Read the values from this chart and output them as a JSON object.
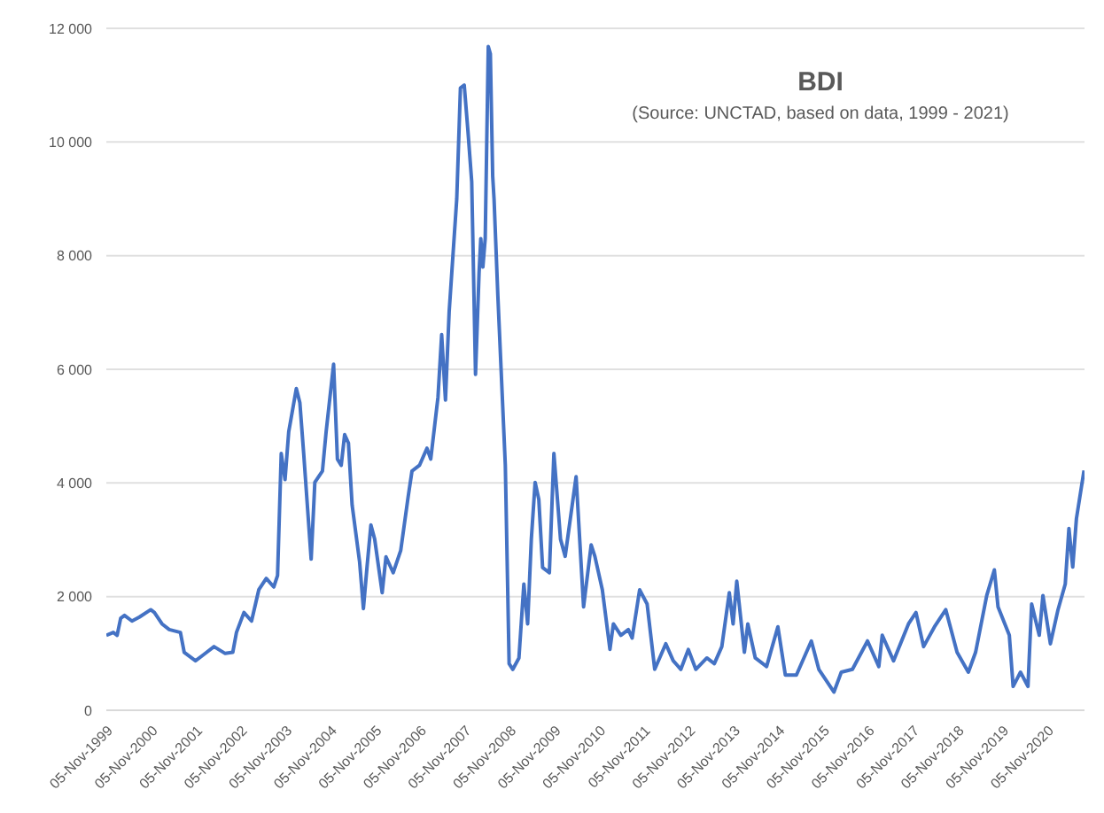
{
  "chart_data": {
    "type": "line",
    "title": "BDI",
    "subtitle": "(Source: UNCTAD, based on data, 1999 - 2021)",
    "grid": "y",
    "line_style": "solid",
    "marker": "none",
    "xlim": [
      "1999-11-05",
      "2021-09-05"
    ],
    "ylim": [
      0,
      12000
    ],
    "yticks": [
      {
        "value": 0,
        "label": "0"
      },
      {
        "value": 2000,
        "label": "2 000"
      },
      {
        "value": 4000,
        "label": "4 000"
      },
      {
        "value": 6000,
        "label": "6 000"
      },
      {
        "value": 8000,
        "label": "8 000"
      },
      {
        "value": 10000,
        "label": "10 000"
      },
      {
        "value": 12000,
        "label": "12 000"
      }
    ],
    "xticks": [
      {
        "value": "1999-11-05",
        "label": "05-Nov-1999"
      },
      {
        "value": "2000-11-05",
        "label": "05-Nov-2000"
      },
      {
        "value": "2001-11-05",
        "label": "05-Nov-2001"
      },
      {
        "value": "2002-11-05",
        "label": "05-Nov-2002"
      },
      {
        "value": "2003-11-05",
        "label": "05-Nov-2003"
      },
      {
        "value": "2004-11-05",
        "label": "05-Nov-2004"
      },
      {
        "value": "2005-11-05",
        "label": "05-Nov-2005"
      },
      {
        "value": "2006-11-05",
        "label": "05-Nov-2006"
      },
      {
        "value": "2007-11-05",
        "label": "05-Nov-2007"
      },
      {
        "value": "2008-11-05",
        "label": "05-Nov-2008"
      },
      {
        "value": "2009-11-05",
        "label": "05-Nov-2009"
      },
      {
        "value": "2010-11-05",
        "label": "05-Nov-2010"
      },
      {
        "value": "2011-11-05",
        "label": "05-Nov-2011"
      },
      {
        "value": "2012-11-05",
        "label": "05-Nov-2012"
      },
      {
        "value": "2013-11-05",
        "label": "05-Nov-2013"
      },
      {
        "value": "2014-11-05",
        "label": "05-Nov-2014"
      },
      {
        "value": "2015-11-05",
        "label": "05-Nov-2015"
      },
      {
        "value": "2016-11-05",
        "label": "05-Nov-2016"
      },
      {
        "value": "2017-11-05",
        "label": "05-Nov-2017"
      },
      {
        "value": "2018-11-05",
        "label": "05-Nov-2018"
      },
      {
        "value": "2019-11-05",
        "label": "05-Nov-2019"
      },
      {
        "value": "2020-11-05",
        "label": "05-Nov-2020"
      }
    ],
    "x": [
      "1999-11-05",
      "2000-01",
      "2000-02",
      "2000-03",
      "2000-04",
      "2000-06",
      "2000-08",
      "2000-11",
      "2000-12",
      "2001-02",
      "2001-04",
      "2001-07",
      "2001-08",
      "2001-11",
      "2002-01",
      "2002-04",
      "2002-07",
      "2002-09",
      "2002-10",
      "2002-12",
      "2003-02",
      "2003-04",
      "2003-06",
      "2003-08",
      "2003-09",
      "2003-10",
      "2003-11",
      "2003-12",
      "2004-02",
      "2004-03",
      "2004-04",
      "2004-06",
      "2004-07",
      "2004-09",
      "2004-10",
      "2004-12",
      "2005-01",
      "2005-02",
      "2005-03",
      "2005-04",
      "2005-05",
      "2005-07",
      "2005-08",
      "2005-09",
      "2005-10",
      "2005-11",
      "2006-01",
      "2006-02",
      "2006-04",
      "2006-06",
      "2006-08",
      "2006-09",
      "2006-11",
      "2007-01",
      "2007-02",
      "2007-04",
      "2007-05",
      "2007-06",
      "2007-07",
      "2007-09",
      "2007-10",
      "2007-11",
      "2007-12",
      "2008-01",
      "2008-02",
      "2008-03",
      "2008-03-15",
      "2008-04",
      "2008-04-20",
      "2008-05-15",
      "2008-06",
      "2008-06-20",
      "2008-07",
      "2008-08",
      "2008-10",
      "2008-11",
      "2008-12",
      "2009-01-20",
      "2009-03",
      "2009-04",
      "2009-05",
      "2009-06",
      "2009-07",
      "2009-08",
      "2009-09-25",
      "2009-11",
      "2009-12-25",
      "2010-02",
      "2010-05",
      "2010-07",
      "2010-09",
      "2010-10",
      "2010-12",
      "2011-02",
      "2011-03",
      "2011-05",
      "2011-07",
      "2011-08",
      "2011-10",
      "2011-12",
      "2012-02",
      "2012-05",
      "2012-07",
      "2012-09",
      "2012-11",
      "2013-01",
      "2013-04",
      "2013-06",
      "2013-08",
      "2013-10",
      "2013-11",
      "2013-12",
      "2014-02",
      "2014-03",
      "2014-05",
      "2014-08",
      "2014-11",
      "2015-01",
      "2015-04",
      "2015-08",
      "2015-10",
      "2016-02",
      "2016-04",
      "2016-07",
      "2016-11",
      "2017-02",
      "2017-03",
      "2017-06",
      "2017-10",
      "2017-12",
      "2018-02",
      "2018-05",
      "2018-08",
      "2018-11",
      "2019-02",
      "2019-04",
      "2019-07",
      "2019-09",
      "2019-10",
      "2020-01",
      "2020-02",
      "2020-04",
      "2020-06",
      "2020-07",
      "2020-09",
      "2020-10",
      "2020-12",
      "2021-02",
      "2021-04",
      "2021-05",
      "2021-06",
      "2021-07",
      "2021-09-01"
    ],
    "series": [
      {
        "color": "#4472c4",
        "values": [
          1320,
          1370,
          1320,
          1620,
          1670,
          1570,
          1640,
          1770,
          1720,
          1520,
          1420,
          1370,
          1020,
          870,
          970,
          1120,
          1000,
          1020,
          1370,
          1720,
          1570,
          2120,
          2320,
          2170,
          2370,
          4520,
          4060,
          4900,
          5660,
          5410,
          4520,
          2660,
          4010,
          4210,
          4900,
          6090,
          4420,
          4310,
          4850,
          4700,
          3610,
          2610,
          1790,
          2560,
          3260,
          3010,
          2070,
          2700,
          2420,
          2810,
          3760,
          4210,
          4310,
          4610,
          4420,
          5510,
          6610,
          5460,
          7010,
          9000,
          10950,
          11000,
          10200,
          9300,
          5910,
          7700,
          8300,
          7800,
          8300,
          11680,
          11550,
          9400,
          9000,
          7300,
          4310,
          820,
          720,
          920,
          2220,
          1520,
          3010,
          4010,
          3710,
          2510,
          2420,
          4520,
          3010,
          2710,
          4110,
          1820,
          2910,
          2710,
          2120,
          1070,
          1520,
          1320,
          1420,
          1270,
          2120,
          1870,
          720,
          1170,
          870,
          720,
          1070,
          720,
          920,
          820,
          1120,
          2070,
          1520,
          2270,
          1020,
          1520,
          920,
          770,
          1470,
          620,
          620,
          1220,
          720,
          320,
          670,
          720,
          1220,
          770,
          1320,
          870,
          1520,
          1720,
          1120,
          1470,
          1770,
          1020,
          670,
          1020,
          2020,
          2470,
          1820,
          1320,
          420,
          670,
          420,
          1870,
          1320,
          2020,
          1170,
          1770,
          2220,
          3200,
          2520,
          3370,
          4220
        ]
      }
    ]
  }
}
